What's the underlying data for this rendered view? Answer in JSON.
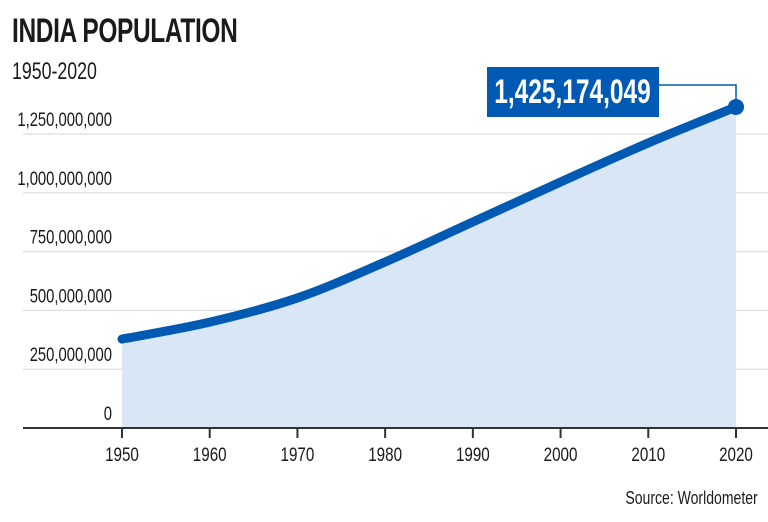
{
  "chart_data": {
    "type": "area",
    "title": "INDIA POPULATION",
    "subtitle": "1950-2020",
    "x": [
      1950,
      1960,
      1970,
      1980,
      1990,
      2000,
      2010,
      2020
    ],
    "values": [
      378000000,
      450000000,
      553000000,
      706000000,
      876000000,
      1046000000,
      1212000000,
      1365000000
    ],
    "xlim": [
      1950,
      2020
    ],
    "ylim": [
      0,
      1250000000
    ],
    "x_ticks": [
      "1950",
      "1960",
      "1970",
      "1980",
      "1990",
      "2000",
      "2010",
      "2020"
    ],
    "y_ticks": [
      "0",
      "250,000,000",
      "500,000,000",
      "750,000,000",
      "1,000,000,000",
      "1,250,000,000"
    ],
    "y_tick_values": [
      0,
      250000000,
      500000000,
      750000000,
      1000000000,
      1250000000
    ],
    "annotation": "1,425,174,049",
    "source": "Source: Worldometer",
    "grid": true,
    "colors": {
      "line": "#0059b3",
      "fill": "#d9e6f5",
      "grid": "#dddddd",
      "axis": "#333333"
    }
  }
}
